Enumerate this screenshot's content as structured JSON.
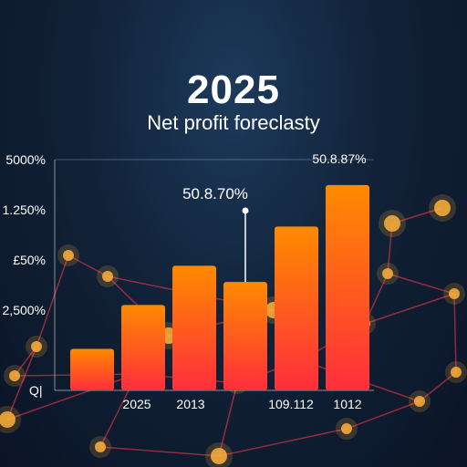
{
  "title": "2025",
  "subtitle": "Net profit foreclasty",
  "colors": {
    "bar_bottom": "#ff2e3c",
    "bar_top": "#ff8a00",
    "network_line": "#ff3a4a",
    "network_node": "#ffb23a"
  },
  "chart_data": {
    "type": "bar",
    "title": "2025",
    "subtitle": "Net profit foreclasty",
    "y_tick_labels": [
      "5000%",
      "1.250%",
      "£50%",
      "2,500%"
    ],
    "x_tick_labels": [
      "2025",
      "2013",
      "",
      "109.112",
      "1012"
    ],
    "origin_label": "Q|",
    "values": [
      0.18,
      0.37,
      0.54,
      0.47,
      0.71,
      0.89
    ],
    "value_scale": "fraction of plot height (read from bar heights; no numeric axis values printed)",
    "annotations": [
      {
        "text": "50.8.70%",
        "bar_index": 3
      },
      {
        "text": "50.8.87%",
        "bar_index": 5
      }
    ],
    "grid": false,
    "legend": "none"
  }
}
